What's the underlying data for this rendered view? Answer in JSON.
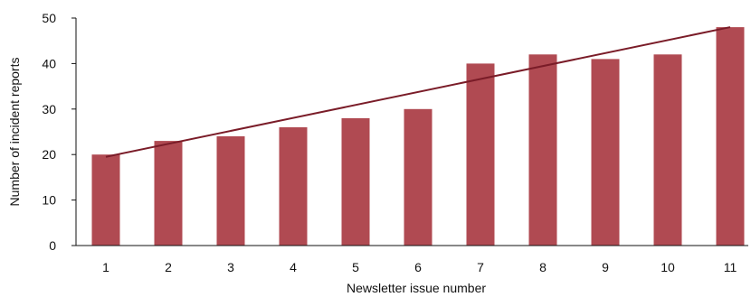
{
  "chart_data": {
    "type": "bar",
    "title": "",
    "xlabel": "Newsletter issue number",
    "ylabel": "Number of incident reports",
    "categories": [
      "1",
      "2",
      "3",
      "4",
      "5",
      "6",
      "7",
      "8",
      "9",
      "10",
      "11"
    ],
    "series": [
      {
        "values": [
          20,
          23,
          24,
          26,
          28,
          30,
          40,
          42,
          41,
          42,
          48
        ]
      }
    ],
    "trendline": {
      "type": "linear",
      "start": 19.5,
      "end": 48
    },
    "ylim": [
      0,
      50
    ],
    "yticks": [
      0,
      10,
      20,
      30,
      40,
      50
    ],
    "grid": false,
    "legend": "none",
    "colors": {
      "bar": "#b04a52",
      "trendline": "#7a1c28",
      "axis": "#111111"
    }
  }
}
